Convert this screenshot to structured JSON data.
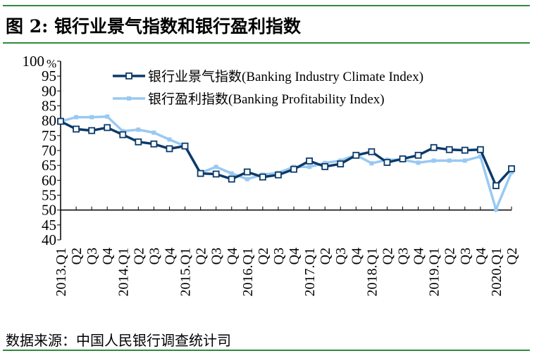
{
  "title": "图 2:  银行业景气指数和银行盈利指数",
  "source": "数据来源：中国人民银行调查统计司",
  "chart_data": {
    "type": "line",
    "title": "银行业景气指数和银行盈利指数",
    "unit_label": "%",
    "ylim": [
      40,
      100
    ],
    "yticks": [
      40,
      45,
      50,
      55,
      60,
      65,
      70,
      75,
      80,
      85,
      90,
      95,
      100
    ],
    "x_axis_crosses_at": 50,
    "legend_position": "top-center",
    "categories": [
      "2013.Q1",
      "Q2",
      "Q3",
      "Q4",
      "2014.Q1",
      "Q2",
      "Q3",
      "Q4",
      "2015.Q1",
      "Q2",
      "Q3",
      "Q4",
      "2016.Q1",
      "Q2",
      "Q3",
      "Q4",
      "2017.Q1",
      "Q2",
      "Q3",
      "Q4",
      "2018.Q1",
      "Q2",
      "Q3",
      "Q4",
      "2019.Q1",
      "Q2",
      "Q3",
      "Q4",
      "2020.Q1",
      "Q2"
    ],
    "series": [
      {
        "name": "银行业景气指数(Banking Industry Climate Index)",
        "color": "#0b3a6a",
        "marker": "hollow-square",
        "values": [
          79.8,
          77.2,
          76.7,
          77.7,
          75.3,
          72.9,
          72.2,
          70.6,
          71.5,
          62.3,
          62.1,
          60.4,
          62.8,
          61.1,
          61.8,
          63.7,
          66.5,
          64.6,
          65.5,
          68.4,
          69.6,
          66.0,
          67.2,
          68.4,
          71.0,
          70.3,
          70.1,
          70.3,
          58.2,
          63.9
        ]
      },
      {
        "name": "银行盈利指数(Banking Profitability Index)",
        "color": "#99c9f2",
        "marker": "filled-square",
        "values": [
          79.8,
          81.2,
          81.2,
          81.4,
          76.5,
          77.0,
          76.0,
          73.7,
          71.5,
          62.5,
          64.5,
          62.3,
          60.4,
          61.9,
          62.5,
          64.5,
          64.5,
          65.8,
          66.6,
          68.5,
          65.7,
          66.9,
          66.9,
          65.9,
          66.6,
          66.6,
          66.6,
          68.0,
          50.2,
          62.7
        ]
      }
    ]
  }
}
